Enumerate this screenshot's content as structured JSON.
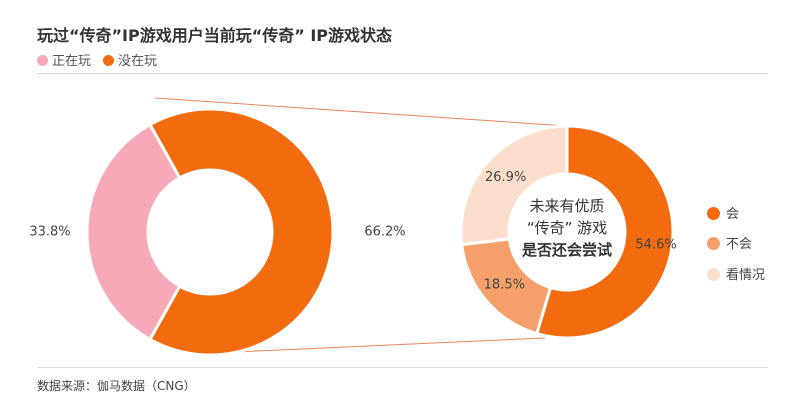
{
  "chart_data": [
    {
      "type": "pie",
      "title": "玩过“传奇”IP游戏用户当前玩“传奇” IP游戏状态",
      "donut": true,
      "categories": [
        "正在玩",
        "没在玩"
      ],
      "values": [
        33.8,
        66.2
      ],
      "labels": [
        "33.8%",
        "66.2%"
      ],
      "colors": [
        "#f7a9b8",
        "#f26b0f"
      ],
      "legend_position": "top-left"
    },
    {
      "type": "pie",
      "donut": true,
      "center_text": [
        "未来有优质",
        "“传奇” 游戏",
        "是否还会尝试"
      ],
      "categories": [
        "会",
        "不会",
        "看情况"
      ],
      "values": [
        54.6,
        18.5,
        26.9
      ],
      "labels": [
        "54.6%",
        "18.5%",
        "26.9%"
      ],
      "colors": [
        "#f26b0f",
        "#f5a06a",
        "#fbdfcc"
      ],
      "legend_position": "right"
    }
  ],
  "source": "数据来源：伽马数据（CNG）"
}
